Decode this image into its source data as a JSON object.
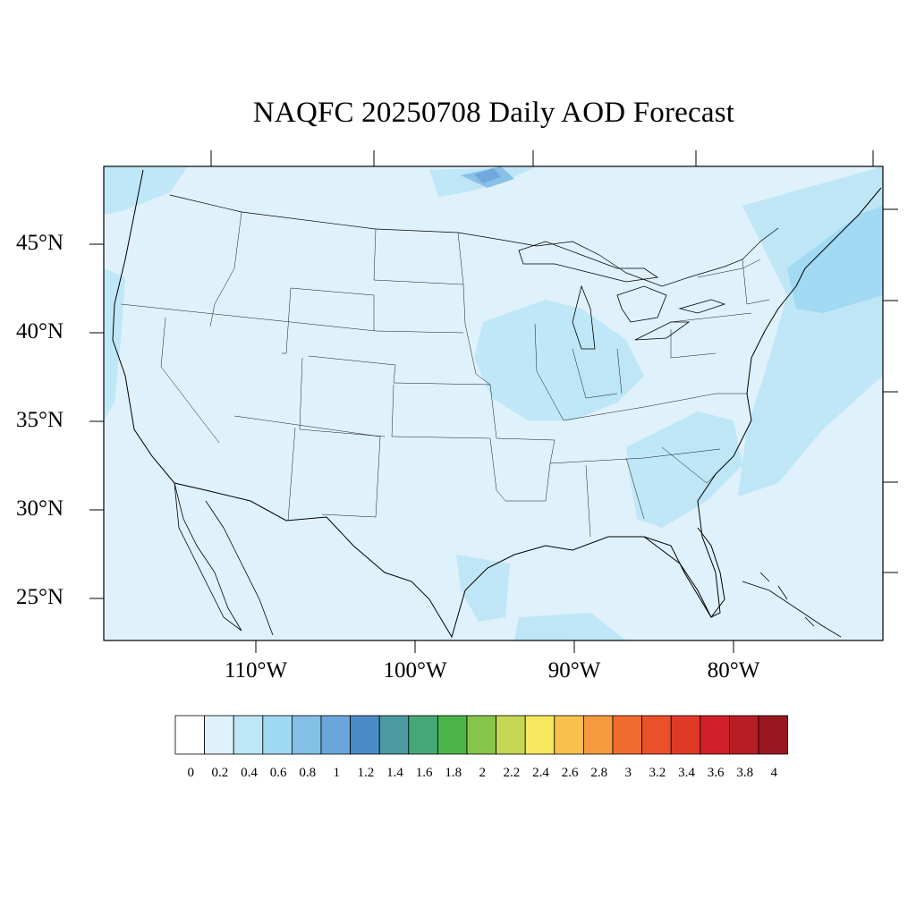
{
  "title": "NAQFC 20250708 Daily AOD Forecast",
  "map": {
    "lat_labels": [
      "45°N",
      "40°N",
      "35°N",
      "30°N",
      "25°N"
    ],
    "lon_labels": [
      "110°W",
      "100°W",
      "90°W",
      "80°W"
    ],
    "background_color": "#dff1fa",
    "region": "Contiguous United States"
  },
  "colorbar": {
    "labels": [
      "0",
      "0.2",
      "0.4",
      "0.6",
      "0.8",
      "1",
      "1.2",
      "1.4",
      "1.6",
      "1.8",
      "2",
      "2.2",
      "2.4",
      "2.6",
      "2.8",
      "3",
      "3.2",
      "3.4",
      "3.6",
      "3.8",
      "4"
    ],
    "colors": [
      "#ffffff",
      "#dff1fa",
      "#bde6f7",
      "#9fd8f3",
      "#84bfe6",
      "#6aa6dc",
      "#4a8bc8",
      "#4a9aa0",
      "#46a877",
      "#4bb449",
      "#86c44b",
      "#c6d655",
      "#f6e75c",
      "#f7c14c",
      "#f59a3e",
      "#f36c2f",
      "#ea5029",
      "#df3a28",
      "#d21f29",
      "#b81d24",
      "#991720"
    ]
  }
}
